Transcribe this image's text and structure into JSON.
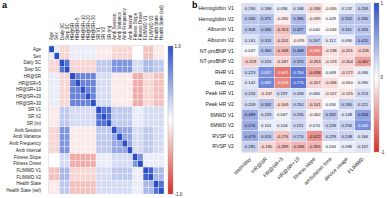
{
  "chart_data": [
    {
      "type": "heatmap",
      "title": "a",
      "x_categories": [
        "Age",
        "Sex",
        "Daily SC",
        "Step SC",
        "HR@SR",
        "HR@SR+5",
        "HR@SR+10",
        "HR@SR+20",
        "HR@SR+30",
        "SR V1",
        "SR V2",
        "SR (m)",
        "Amb Session",
        "Amb Variance",
        "Amb Frequency",
        "Amb Interval",
        "Fitness Slope",
        "Fitness Onset",
        "FLIMWD V1",
        "FLIMWD V2",
        "Health State",
        "Health State (sel)"
      ],
      "y_categories": [
        "Age",
        "Sex",
        "Daily SC",
        "Step SC",
        "HR@SR",
        "HR@SR+5",
        "HR@SR+10",
        "HR@SR+20",
        "HR@SR+30",
        "SR V1",
        "SR V2",
        "SR (m)",
        "Amb Session",
        "Amb Variance",
        "Amb Frequency",
        "Amb Interval",
        "Fitness Slope",
        "Fitness Onset",
        "FLIMWD V1",
        "FLIMWD V2",
        "Health State",
        "Health State (sel)"
      ],
      "values": [
        [
          1,
          0.1,
          -0.2,
          -0.2,
          0.1,
          0.1,
          0.1,
          0.1,
          0.1,
          -0.1,
          -0.1,
          -0.1,
          -0.2,
          -0.2,
          -0.2,
          -0.2,
          0,
          0,
          -0.3,
          -0.3,
          -0.1,
          -0.1
        ],
        [
          0.1,
          1,
          -0.2,
          -0.2,
          0.1,
          0.1,
          0.1,
          0.1,
          0.1,
          -0.1,
          -0.1,
          -0.1,
          -0.2,
          -0.2,
          -0.2,
          -0.2,
          0,
          0,
          -0.3,
          -0.3,
          -0.1,
          -0.1
        ],
        [
          -0.2,
          -0.2,
          1,
          0.8,
          -0.2,
          -0.2,
          -0.2,
          -0.2,
          -0.2,
          0.3,
          0.3,
          0.3,
          0.6,
          0.6,
          0.6,
          0.6,
          0.2,
          0.2,
          0.4,
          0.4,
          0.3,
          0.3
        ],
        [
          -0.2,
          -0.2,
          0.8,
          1,
          -0.2,
          -0.2,
          -0.2,
          -0.2,
          -0.2,
          0.3,
          0.3,
          0.3,
          0.6,
          0.6,
          0.6,
          0.6,
          0.2,
          0.2,
          0.4,
          0.4,
          0.3,
          0.3
        ],
        [
          0.1,
          0.1,
          -0.2,
          -0.2,
          1,
          0.7,
          0.7,
          0.7,
          0.7,
          0.2,
          0.2,
          0.2,
          -0.1,
          -0.1,
          -0.1,
          -0.1,
          -0.4,
          -0.4,
          -0.2,
          -0.2,
          -0.3,
          -0.3
        ],
        [
          0.1,
          0.1,
          -0.2,
          -0.2,
          0.7,
          1,
          0.7,
          0.7,
          0.7,
          0.2,
          0.2,
          0.2,
          -0.1,
          -0.1,
          -0.1,
          -0.1,
          -0.4,
          -0.4,
          -0.2,
          -0.2,
          -0.3,
          -0.3
        ],
        [
          0.1,
          0.1,
          -0.2,
          -0.2,
          0.7,
          0.7,
          1,
          0.7,
          0.7,
          0.2,
          0.2,
          0.2,
          -0.1,
          -0.1,
          -0.1,
          -0.1,
          -0.4,
          -0.4,
          -0.2,
          -0.2,
          -0.3,
          -0.3
        ],
        [
          0.1,
          0.1,
          -0.2,
          -0.2,
          0.7,
          0.7,
          0.7,
          1,
          0.7,
          0.2,
          0.2,
          0.2,
          -0.1,
          -0.1,
          -0.1,
          -0.1,
          -0.4,
          -0.4,
          -0.2,
          -0.2,
          -0.3,
          -0.3
        ],
        [
          0.1,
          0.1,
          -0.2,
          -0.2,
          0.7,
          0.7,
          0.7,
          0.7,
          1,
          0.2,
          0.2,
          0.2,
          -0.1,
          -0.1,
          -0.1,
          -0.1,
          -0.4,
          -0.4,
          -0.2,
          -0.2,
          -0.3,
          -0.3
        ],
        [
          -0.1,
          -0.1,
          0.3,
          0.3,
          0.2,
          0.2,
          0.2,
          0.2,
          0.2,
          1,
          0.8,
          0.8,
          0.3,
          0.3,
          0.3,
          0.3,
          0.1,
          0.1,
          0.2,
          0.2,
          0.2,
          0.2
        ],
        [
          -0.1,
          -0.1,
          0.3,
          0.3,
          0.2,
          0.2,
          0.2,
          0.2,
          0.2,
          0.8,
          1,
          0.8,
          0.3,
          0.3,
          0.3,
          0.3,
          0.1,
          0.1,
          0.2,
          0.2,
          0.2,
          0.2
        ],
        [
          -0.1,
          -0.1,
          0.3,
          0.3,
          0.2,
          0.2,
          0.2,
          0.2,
          0.2,
          0.8,
          0.8,
          1,
          0.3,
          0.3,
          0.3,
          0.3,
          0.1,
          0.1,
          0.2,
          0.2,
          0.2,
          0.2
        ],
        [
          -0.2,
          -0.2,
          0.6,
          0.6,
          -0.1,
          -0.1,
          -0.1,
          -0.1,
          -0.1,
          0.3,
          0.3,
          0.3,
          1,
          0.5,
          0.5,
          0.5,
          0.2,
          0.2,
          0.3,
          0.3,
          0.2,
          0.2
        ],
        [
          -0.2,
          -0.2,
          0.6,
          0.6,
          -0.1,
          -0.1,
          -0.1,
          -0.1,
          -0.1,
          0.3,
          0.3,
          0.3,
          0.5,
          1,
          0.5,
          0.5,
          0.2,
          0.2,
          0.3,
          0.3,
          0.2,
          0.2
        ],
        [
          -0.2,
          -0.2,
          0.6,
          0.6,
          -0.1,
          -0.1,
          -0.1,
          -0.1,
          -0.1,
          0.3,
          0.3,
          0.3,
          0.5,
          0.5,
          1,
          0.5,
          0.2,
          0.2,
          0.3,
          0.3,
          0.2,
          0.2
        ],
        [
          -0.2,
          -0.2,
          0.6,
          0.6,
          -0.1,
          -0.1,
          -0.1,
          -0.1,
          -0.1,
          0.3,
          0.3,
          0.3,
          0.5,
          0.5,
          0.5,
          1,
          0.2,
          0.2,
          0.3,
          0.3,
          0.2,
          0.2
        ],
        [
          0,
          0,
          0.2,
          0.2,
          -0.4,
          -0.4,
          -0.4,
          -0.4,
          -0.4,
          0.1,
          0.1,
          0.1,
          0.2,
          0.2,
          0.2,
          0.2,
          1,
          0.6,
          0.1,
          0.1,
          0.1,
          0.1
        ],
        [
          0,
          0,
          0.2,
          0.2,
          -0.4,
          -0.4,
          -0.4,
          -0.4,
          -0.4,
          0.1,
          0.1,
          0.1,
          0.2,
          0.2,
          0.2,
          0.2,
          0.6,
          1,
          0.1,
          0.1,
          0.1,
          0.1
        ],
        [
          -0.3,
          -0.3,
          0.4,
          0.4,
          -0.2,
          -0.2,
          -0.2,
          -0.2,
          -0.2,
          0.2,
          0.2,
          0.2,
          0.3,
          0.3,
          0.3,
          0.3,
          0.1,
          0.1,
          1,
          0.9,
          0.4,
          0.4
        ],
        [
          -0.3,
          -0.3,
          0.4,
          0.4,
          -0.2,
          -0.2,
          -0.2,
          -0.2,
          -0.2,
          0.2,
          0.2,
          0.2,
          0.3,
          0.3,
          0.3,
          0.3,
          0.1,
          0.1,
          0.9,
          1,
          0.4,
          0.4
        ],
        [
          -0.1,
          -0.1,
          0.3,
          0.3,
          -0.3,
          -0.3,
          -0.3,
          -0.3,
          -0.3,
          0.2,
          0.2,
          0.2,
          0.2,
          0.2,
          0.2,
          0.2,
          0.1,
          0.1,
          0.4,
          0.4,
          1,
          0.8
        ],
        [
          -0.1,
          -0.1,
          0.3,
          0.3,
          -0.3,
          -0.3,
          -0.3,
          -0.3,
          -0.3,
          0.2,
          0.2,
          0.2,
          0.2,
          0.2,
          0.2,
          0.2,
          0.1,
          0.1,
          0.4,
          0.4,
          0.8,
          1
        ]
      ],
      "colors": [
        "#d73027",
        "#ffffff",
        "#2c4fc7"
      ],
      "colorbar": {
        "range": [
          -1,
          1
        ],
        "ticks": [
          {
            "value": 1,
            "label": "1.0"
          },
          {
            "value": -1,
            "label": "-1.0"
          }
        ]
      },
      "data_labels": false
    },
    {
      "type": "heatmap",
      "title": "b",
      "x_categories": [
        "steps/day",
        "HR@SR",
        "HR@SR+5",
        "HR@SR+10",
        "fitness slope",
        "ambulation time",
        "device usage",
        "FLIMWD"
      ],
      "y_categories": [
        "Hemoglobin V1",
        "Hemoglobin V2",
        "Albumin V1",
        "Albumin V2",
        "NT-proBNP V1",
        "NT-proBNP V2",
        "RHR V1",
        "RHR V2",
        "Peak HR V1",
        "Peak HR V2",
        "6MWD V1",
        "6MWD V2",
        "RVSP V1",
        "RVSP V2"
      ],
      "values": [
        [
          0.19,
          0.188,
          0.096,
          0.168,
          -0.186,
          -0.055,
          0.132,
          0.259
        ],
        [
          0.33,
          0.371,
          -0.092,
          0.386,
          -0.095,
          0.029,
          0.352,
          0.33
        ],
        [
          0.308,
          0.365,
          -0.313,
          0.427,
          0.04,
          -0.034,
          0.311,
          0.325
        ],
        [
          0.161,
          0.311,
          -0.241,
          -0.076,
          0.267,
          0.112,
          0.09,
          0.411
        ],
        [
          0.047,
          0.36,
          -0.348,
          0.458,
          -0.585,
          -0.138,
          -0.201,
          -0.226
        ],
        [
          -0.229,
          0.224,
          -0.187,
          0.374,
          -0.263,
          -0.123,
          -0.204,
          -0.467
        ],
        [
          0.223,
          0.637,
          -0.661,
          0.75,
          -0.438,
          0.049,
          -0.172,
          0.096
        ],
        [
          0.142,
          0.682,
          -0.576,
          0.776,
          -0.207,
          -0.166,
          -0.05,
          0.09
        ],
        [
          0.224,
          -0.137,
          0.197,
          0.209,
          0.084,
          -0.107,
          -0.125,
          0.213
        ],
        [
          0.209,
          0.352,
          -0.169,
          0.252,
          -0.241,
          0.034,
          0.28,
          0.221
        ],
        [
          0.489,
          0.223,
          0.067,
          0.255,
          -0.062,
          0.332,
          0.148,
          0.534
        ],
        [
          0.476,
          0.101,
          0.106,
          0.221,
          0.074,
          0.228,
          0.256,
          0.64
        ],
        [
          0.479,
          0.315,
          -0.276,
          0.274,
          -0.522,
          0.229,
          0.248,
          0.166
        ],
        [
          0.281,
          -0.19,
          -0.289,
          -0.356,
          -0.355,
          0.034,
          0.096,
          0.157
        ]
      ],
      "value_labels": [
        [
          "0.190",
          "0.188",
          "0.096",
          "0.168",
          "-0.186",
          "-0.055",
          "0.132",
          "0.259"
        ],
        [
          "0.330",
          "0.371",
          "-0.092",
          "0.386",
          "-0.095",
          "0.029",
          "0.352",
          "0.330"
        ],
        [
          "0.308",
          "0.365",
          "-0.313",
          "0.427",
          "0.040",
          "-0.034",
          "0.311",
          "0.325"
        ],
        [
          "0.161",
          "0.311",
          "-0.241",
          "-0.076",
          "0.267",
          "0.112",
          "0.090",
          "0.411"
        ],
        [
          "0.047",
          "0.360",
          "-0.348",
          "0.458",
          "-0.585",
          "-0.138",
          "-0.201",
          "-0.226"
        ],
        [
          "-0.229",
          "0.224",
          "-0.187",
          "0.374",
          "-0.263",
          "-0.123",
          "-0.204",
          "-0.467"
        ],
        [
          "0.223",
          "0.637",
          "-0.661",
          "0.750",
          "-0.438",
          "0.049",
          "-0.172",
          "0.096"
        ],
        [
          "0.142",
          "0.682",
          "-0.576",
          "0.776",
          "-0.207",
          "-0.166",
          "-0.050",
          "0.090"
        ],
        [
          "0.224",
          "-0.137",
          "0.197",
          "0.209",
          "0.084",
          "-0.107",
          "-0.125",
          "0.213"
        ],
        [
          "0.209",
          "0.352",
          "-0.169",
          "0.252",
          "-0.241",
          "0.034",
          "0.280",
          "0.221"
        ],
        [
          "0.489",
          "0.223",
          "0.067",
          "0.255",
          "-0.062",
          "0.332",
          "0.148",
          "0.534"
        ],
        [
          "0.476",
          "0.101",
          "0.106",
          "0.221",
          "0.074",
          "0.228",
          "0.256",
          "0.640"
        ],
        [
          "0.479",
          "0.315",
          "-0.276",
          "0.274",
          "-0.522",
          "0.229",
          "0.248",
          "0.166"
        ],
        [
          "0.281",
          "-0.190",
          "-0.289",
          "-0.356",
          "-0.355",
          "0.034",
          "0.096",
          "0.157"
        ]
      ],
      "colors": [
        "#d73027",
        "#ffffff",
        "#2c4fc7"
      ],
      "colorbar": {
        "range": [
          -1,
          1
        ],
        "ticks": [
          1,
          0,
          -1
        ]
      },
      "data_labels": true
    }
  ]
}
